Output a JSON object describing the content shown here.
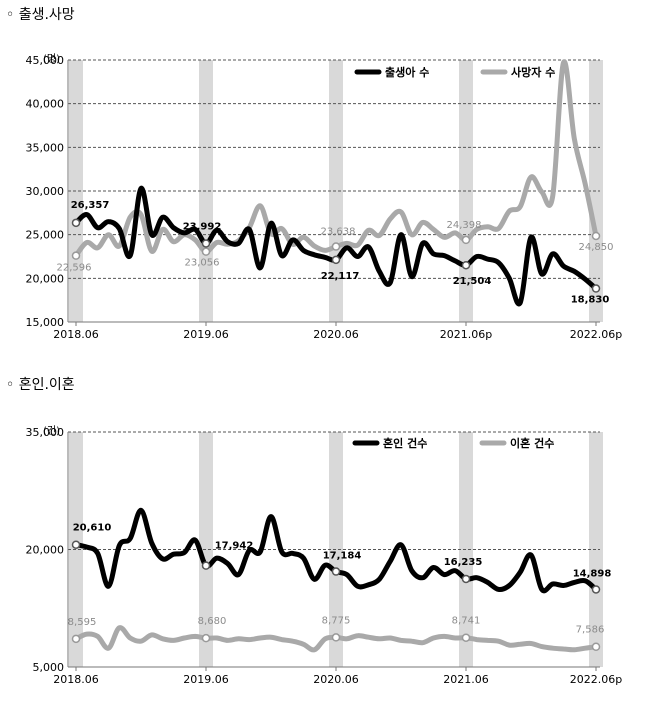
{
  "sections": [
    {
      "title": "◦ 출생.사망"
    },
    {
      "title": "◦ 혼인.이혼"
    }
  ],
  "chart_data": [
    {
      "type": "line",
      "title": "",
      "ylabel": "(명)",
      "ylim": [
        15000,
        45000
      ],
      "yticks": [
        15000,
        20000,
        25000,
        30000,
        35000,
        40000,
        45000
      ],
      "ytick_labels": [
        "15,000",
        "20,000",
        "25,000",
        "30,000",
        "35,000",
        "40,000",
        "45,000"
      ],
      "xtick_labels": [
        "2018.06",
        "2019.06",
        "2020.06",
        "2021.06p",
        "2022.06p"
      ],
      "legend_position": "top-right",
      "months": 48,
      "shaded_month_indices": [
        0,
        12,
        24,
        36,
        48
      ],
      "series": [
        {
          "name": "출생아 수",
          "color": "#000000",
          "values": [
            26357,
            27300,
            25800,
            26500,
            25700,
            22600,
            30300,
            25000,
            27000,
            25800,
            25200,
            25600,
            23992,
            25500,
            24200,
            24000,
            25600,
            21200,
            26300,
            22600,
            24400,
            23200,
            22700,
            22400,
            22117,
            23500,
            22500,
            23600,
            20800,
            19500,
            25000,
            20200,
            24000,
            22800,
            22600,
            22000,
            21504,
            22500,
            22200,
            21800,
            20000,
            17200,
            24700,
            20500,
            22800,
            21400,
            20800,
            19900,
            18830
          ],
          "labels": [
            {
              "i": 0,
              "text": "26,357"
            },
            {
              "i": 12,
              "text": "23,992"
            },
            {
              "i": 24,
              "text": "22,117"
            },
            {
              "i": 36,
              "text": "21,504"
            },
            {
              "i": 48,
              "text": "18,830"
            }
          ]
        },
        {
          "name": "사망자 수",
          "color": "#a9a9a9",
          "values": [
            22596,
            24100,
            23500,
            25000,
            23700,
            27000,
            27300,
            23100,
            25600,
            24200,
            25000,
            24400,
            23056,
            24100,
            23900,
            24300,
            25800,
            28300,
            25100,
            25700,
            23900,
            24700,
            23700,
            23200,
            23638,
            24000,
            23800,
            25500,
            24900,
            26800,
            27600,
            25000,
            26400,
            25600,
            24700,
            25200,
            24398,
            25600,
            25900,
            25700,
            27700,
            28200,
            31600,
            29900,
            29400,
            44700,
            36000,
            30800,
            24850
          ],
          "labels": [
            {
              "i": 0,
              "text": "22,596"
            },
            {
              "i": 12,
              "text": "23,056"
            },
            {
              "i": 24,
              "text": "23,638"
            },
            {
              "i": 36,
              "text": "24,398"
            },
            {
              "i": 48,
              "text": "24,850"
            }
          ]
        }
      ]
    },
    {
      "type": "line",
      "title": "",
      "ylabel": "(건)",
      "ylim": [
        5000,
        35000
      ],
      "yticks": [
        5000,
        20000,
        35000
      ],
      "ytick_labels": [
        "5,000",
        "20,000",
        "35,000"
      ],
      "xtick_labels": [
        "2018.06",
        "2019.06",
        "2020.06",
        "2021.06",
        "2022.06p"
      ],
      "legend_position": "top-right",
      "months": 48,
      "shaded_month_indices": [
        0,
        12,
        24,
        36,
        48
      ],
      "series": [
        {
          "name": "혼인 건수",
          "color": "#000000",
          "values": [
            20610,
            20300,
            19500,
            15300,
            20500,
            21400,
            25000,
            20800,
            18800,
            19400,
            19600,
            21200,
            17942,
            18900,
            18200,
            16800,
            19900,
            19700,
            24200,
            19700,
            19500,
            18900,
            16200,
            18000,
            17184,
            16800,
            15300,
            15500,
            16200,
            18500,
            20600,
            17300,
            16400,
            17700,
            16800,
            17300,
            16235,
            16400,
            15800,
            14900,
            15400,
            17100,
            19300,
            14900,
            15600,
            15400,
            15800,
            16000,
            14898
          ],
          "labels": [
            {
              "i": 0,
              "text": "20,610"
            },
            {
              "i": 12,
              "text": "17,942"
            },
            {
              "i": 24,
              "text": "17,184"
            },
            {
              "i": 36,
              "text": "16,235"
            },
            {
              "i": 48,
              "text": "14,898"
            }
          ]
        },
        {
          "name": "이혼 건수",
          "color": "#a9a9a9",
          "values": [
            8595,
            9200,
            8900,
            7400,
            10000,
            8700,
            8300,
            9100,
            8600,
            8400,
            8700,
            8900,
            8680,
            8700,
            8400,
            8600,
            8500,
            8700,
            8800,
            8500,
            8300,
            7900,
            7200,
            8600,
            8775,
            8600,
            9000,
            8800,
            8600,
            8700,
            8400,
            8300,
            8100,
            8700,
            8900,
            8700,
            8741,
            8500,
            8400,
            8300,
            7800,
            7900,
            8000,
            7600,
            7400,
            7300,
            7200,
            7400,
            7586
          ],
          "labels": [
            {
              "i": 0,
              "text": "8,595"
            },
            {
              "i": 12,
              "text": "8,680"
            },
            {
              "i": 24,
              "text": "8,775"
            },
            {
              "i": 36,
              "text": "8,741"
            },
            {
              "i": 48,
              "text": "7,586"
            }
          ]
        }
      ]
    }
  ]
}
